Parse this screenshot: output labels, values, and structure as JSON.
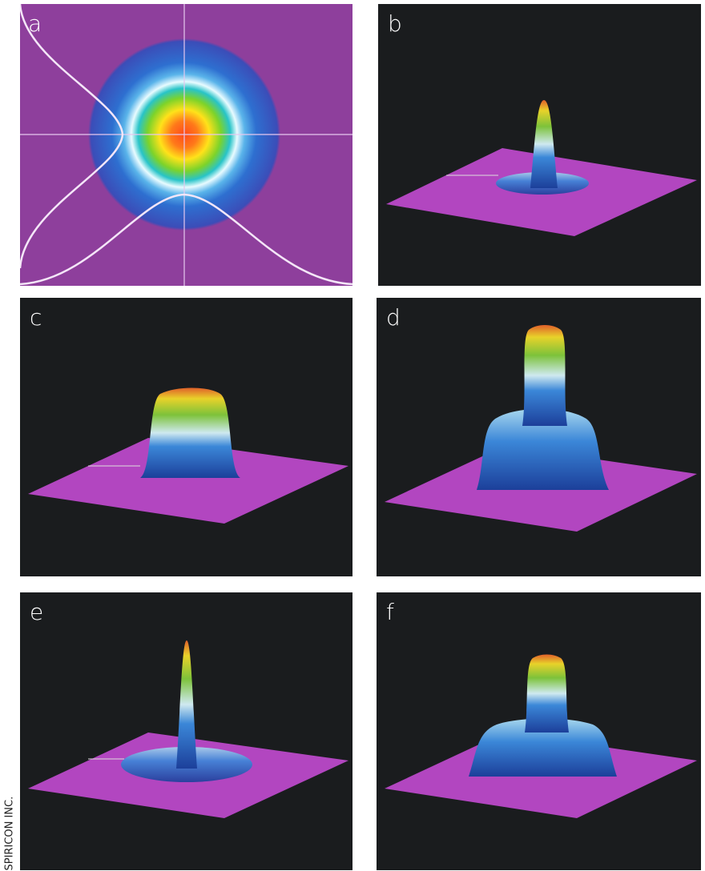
{
  "panels": [
    {
      "label": "a"
    },
    {
      "label": "b"
    },
    {
      "label": "c"
    },
    {
      "label": "d"
    },
    {
      "label": "e"
    },
    {
      "label": "f"
    }
  ],
  "credit": "SPIRICON INC."
}
